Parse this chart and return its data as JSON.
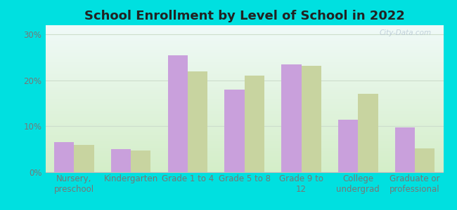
{
  "title": "School Enrollment by Level of School in 2022",
  "categories": [
    "Nursery,\npreschool",
    "Kindergarten",
    "Grade 1 to 4",
    "Grade 5 to 8",
    "Grade 9 to\n12",
    "College\nundergrad",
    "Graduate or\nprofessional"
  ],
  "zip_values": [
    6.5,
    5.0,
    25.5,
    18.0,
    23.5,
    11.5,
    9.8
  ],
  "ky_values": [
    6.0,
    4.8,
    22.0,
    21.0,
    23.2,
    17.0,
    5.2
  ],
  "zip_color": "#c9a0dc",
  "ky_color": "#c8d4a0",
  "bg_outer": "#00e0e0",
  "bg_gradient_top": "#f0faf8",
  "bg_gradient_bottom": "#d4eec8",
  "ylim": [
    0,
    32
  ],
  "yticks": [
    0,
    10,
    20,
    30
  ],
  "ytick_labels": [
    "0%",
    "10%",
    "20%",
    "30%"
  ],
  "bar_width": 0.35,
  "title_fontsize": 13,
  "tick_fontsize": 8.5,
  "legend_fontsize": 9,
  "watermark": "City-Data.com"
}
